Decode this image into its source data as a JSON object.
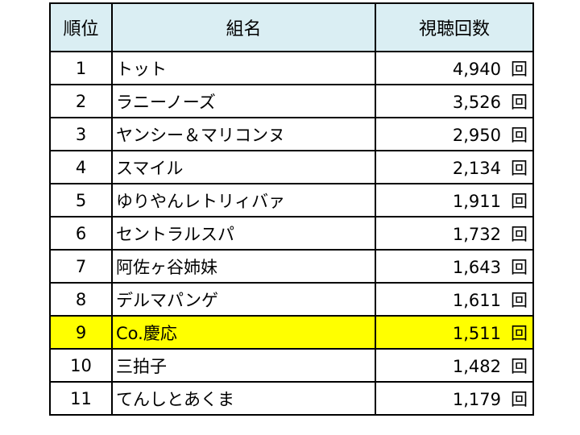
{
  "table": {
    "headers": {
      "rank": "順位",
      "name": "組名",
      "views": "視聴回数"
    },
    "unit": "回",
    "highlight_color": "#ffff00",
    "header_color": "#daeef3",
    "rows": [
      {
        "rank": "1",
        "name": "トット",
        "views": "4,940",
        "highlighted": false
      },
      {
        "rank": "2",
        "name": "ラニーノーズ",
        "views": "3,526",
        "highlighted": false
      },
      {
        "rank": "3",
        "name": "ヤンシー＆マリコンヌ",
        "views": "2,950",
        "highlighted": false
      },
      {
        "rank": "4",
        "name": "スマイル",
        "views": "2,134",
        "highlighted": false
      },
      {
        "rank": "5",
        "name": "ゆりやんレトリィバァ",
        "views": "1,911",
        "highlighted": false
      },
      {
        "rank": "6",
        "name": "セントラルスパ",
        "views": "1,732",
        "highlighted": false
      },
      {
        "rank": "7",
        "name": "阿佐ヶ谷姉妹",
        "views": "1,643",
        "highlighted": false
      },
      {
        "rank": "8",
        "name": "デルマパンゲ",
        "views": "1,611",
        "highlighted": false
      },
      {
        "rank": "9",
        "name": "Co.慶応",
        "views": "1,511",
        "highlighted": true
      },
      {
        "rank": "10",
        "name": "三拍子",
        "views": "1,482",
        "highlighted": false
      },
      {
        "rank": "11",
        "name": "てんしとあくま",
        "views": "1,179",
        "highlighted": false
      }
    ]
  }
}
